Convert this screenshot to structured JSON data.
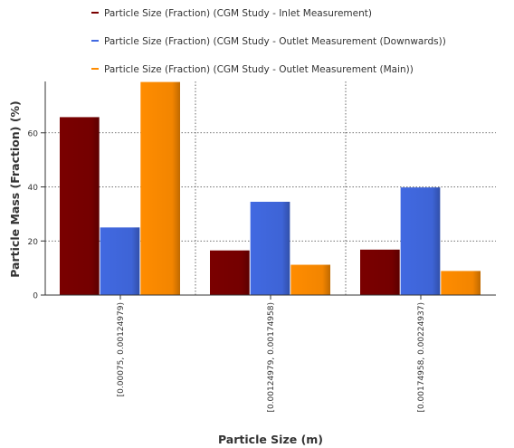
{
  "chart_data": {
    "type": "bar",
    "title": "",
    "xlabel": "Particle Size (m)",
    "ylabel": "Particle Mass (Fraction) (%)",
    "ylim": [
      0,
      79
    ],
    "yticks": [
      0,
      20,
      40,
      60
    ],
    "grid": true,
    "legend_position": "top",
    "categories": [
      "[0.00075, 0.00124979)",
      "[0.00124979, 0.00174958)",
      "[0.00174958, 0.00224937)"
    ],
    "series": [
      {
        "name": "Particle Size (Fraction) (CGM Study - Inlet Measurement)",
        "color": "#7a0000",
        "values": [
          65.8,
          16.5,
          16.8
        ]
      },
      {
        "name": "Particle Size (Fraction) (CGM Study - Outlet Measurement (Downwards))",
        "color": "#4169e1",
        "values": [
          25.0,
          34.5,
          39.8
        ]
      },
      {
        "name": "Particle Size (Fraction) (CGM Study - Outlet Measurement (Main))",
        "color": "#ff8c00",
        "values": [
          78.8,
          11.2,
          8.9
        ]
      }
    ]
  }
}
